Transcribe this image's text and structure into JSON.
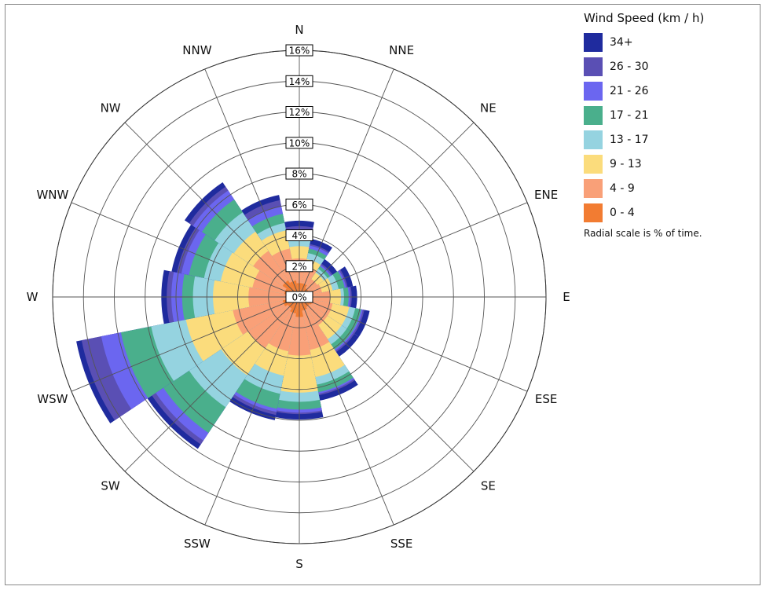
{
  "chart_data": {
    "type": "wind_rose",
    "directions": [
      "N",
      "NNE",
      "NE",
      "ENE",
      "E",
      "ESE",
      "SE",
      "SSE",
      "S",
      "SSW",
      "SW",
      "WSW",
      "W",
      "WNW",
      "NW",
      "NNW"
    ],
    "radial_ticks": [
      0,
      2,
      4,
      6,
      8,
      10,
      12,
      14,
      16
    ],
    "radial_tick_labels": [
      "0%",
      "2%",
      "4%",
      "6%",
      "8%",
      "10%",
      "12%",
      "14%",
      "16%"
    ],
    "rmax": 16,
    "legend_title": "Wind Speed (km / h)",
    "legend_note": "Radial scale is % of time.",
    "bins": [
      {
        "name": "34+",
        "color": "#1f2b9e"
      },
      {
        "name": "26 - 30",
        "color": "#5a4fb4"
      },
      {
        "name": "21 - 26",
        "color": "#6b66f0"
      },
      {
        "name": "17 - 21",
        "color": "#4aaf8c"
      },
      {
        "name": "13 - 17",
        "color": "#95d3e0"
      },
      {
        "name": "9 - 13",
        "color": "#fbdc7c"
      },
      {
        "name": "4 - 9",
        "color": "#f9a078"
      },
      {
        "name": "0 - 4",
        "color": "#f27c32"
      }
    ],
    "cumulative_order": "inner_to_outer",
    "cumulative": {
      "N": [
        0.9,
        2.5,
        3.3,
        3.7,
        4.2,
        4.4,
        4.6
      ],
      "NNE": [
        0.9,
        2.0,
        2.5,
        2.9,
        3.2,
        3.4,
        3.5
      ],
      "NE": [
        0.7,
        1.4,
        1.9,
        2.2,
        2.4,
        2.5,
        2.6
      ],
      "ENE": [
        0.6,
        1.5,
        2.2,
        2.6,
        3.0,
        3.1,
        3.2
      ],
      "E": [
        0.8,
        2.0,
        2.7,
        2.9,
        3.2,
        3.3,
        3.4
      ],
      "ESE": [
        0.9,
        2.2,
        3.3,
        3.7,
        4.1,
        4.2,
        4.3
      ],
      "SE": [
        0.8,
        2.2,
        3.3,
        3.7,
        4.1,
        4.2,
        4.3
      ],
      "SSE": [
        0.9,
        3.5,
        5.3,
        5.8,
        6.3,
        6.4,
        6.5
      ],
      "S": [
        1.3,
        3.8,
        6.2,
        6.8,
        7.3,
        7.5,
        7.6
      ],
      "SSW": [
        1.1,
        3.6,
        5.2,
        6.4,
        7.4,
        7.6,
        7.8
      ],
      "SW": [
        0.9,
        4.0,
        6.1,
        8.6,
        10.6,
        11.2,
        11.5
      ],
      "WSW": [
        1.1,
        4.4,
        7.5,
        9.8,
        11.8,
        13.1,
        14.4
      ],
      "W": [
        0.9,
        3.3,
        5.6,
        6.9,
        7.6,
        8.3,
        8.6
      ],
      "WNW": [
        1.0,
        3.1,
        5.2,
        6.3,
        7.3,
        7.8,
        8.1
      ],
      "NW": [
        1.3,
        3.6,
        5.1,
        6.6,
        7.6,
        8.3,
        8.6
      ],
      "NNW": [
        1.1,
        3.2,
        4.4,
        4.9,
        5.5,
        6.0,
        6.4
      ]
    }
  }
}
